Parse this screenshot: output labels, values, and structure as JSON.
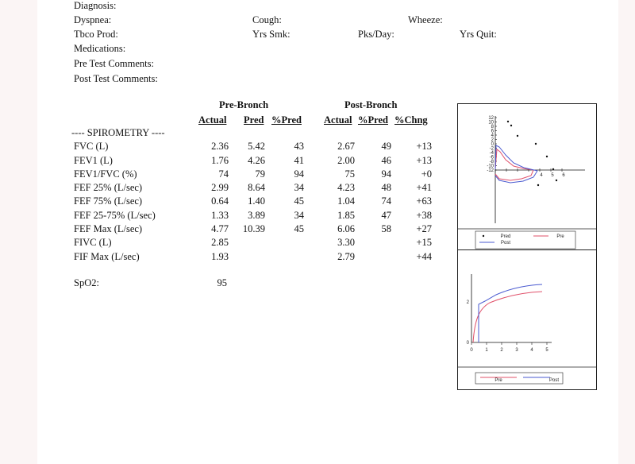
{
  "header": {
    "diagnosis": "Diagnosis:",
    "dyspnea": "Dyspnea:",
    "cough": "Cough:",
    "wheeze": "Wheeze:",
    "tbco_prod": "Tbco Prod:",
    "yrs_smk": "Yrs Smk:",
    "pks_day": "Pks/Day:",
    "yrs_quit": "Yrs Quit:",
    "medications": "Medications:",
    "pre_test_comments": "Pre Test Comments:",
    "post_test_comments": "Post Test Comments:"
  },
  "table": {
    "pre_bronch": "Pre-Bronch",
    "post_bronch": "Post-Bronch",
    "columns": [
      "Actual",
      "Pred",
      "%Pred",
      "Actual",
      "%Pred",
      "%Chng"
    ],
    "section": "---- SPIROMETRY ----",
    "rows": [
      {
        "label": "FVC (L)",
        "pre_actual": "2.36",
        "pred": "5.42",
        "pct_pred": "43",
        "post_actual": "2.67",
        "post_pct_pred": "49",
        "pct_chng": "+13"
      },
      {
        "label": "FEV1 (L)",
        "pre_actual": "1.76",
        "pred": "4.26",
        "pct_pred": "41",
        "post_actual": "2.00",
        "post_pct_pred": "46",
        "pct_chng": "+13"
      },
      {
        "label": "FEV1/FVC (%)",
        "pre_actual": "74",
        "pred": "79",
        "pct_pred": "94",
        "post_actual": "75",
        "post_pct_pred": "94",
        "pct_chng": "+0"
      },
      {
        "label": "FEF 25% (L/sec)",
        "pre_actual": "2.99",
        "pred": "8.64",
        "pct_pred": "34",
        "post_actual": "4.23",
        "post_pct_pred": "48",
        "pct_chng": "+41"
      },
      {
        "label": "FEF 75% (L/sec)",
        "pre_actual": "0.64",
        "pred": "1.40",
        "pct_pred": "45",
        "post_actual": "1.04",
        "post_pct_pred": "74",
        "pct_chng": "+63"
      },
      {
        "label": "FEF 25-75% (L/sec)",
        "pre_actual": "1.33",
        "pred": "3.89",
        "pct_pred": "34",
        "post_actual": "1.85",
        "post_pct_pred": "47",
        "pct_chng": "+38"
      },
      {
        "label": "FEF Max (L/sec)",
        "pre_actual": "4.77",
        "pred": "10.39",
        "pct_pred": "45",
        "post_actual": "6.06",
        "post_pct_pred": "58",
        "pct_chng": "+27"
      },
      {
        "label": "FIVC (L)",
        "pre_actual": "2.85",
        "pred": "",
        "pct_pred": "",
        "post_actual": "3.30",
        "post_pct_pred": "",
        "pct_chng": "+15"
      },
      {
        "label": "FIF Max (L/sec)",
        "pre_actual": "1.93",
        "pred": "",
        "pct_pred": "",
        "post_actual": "2.79",
        "post_pct_pred": "",
        "pct_chng": "+44"
      }
    ],
    "spo2_label": "SpO2:",
    "spo2_value": "95"
  },
  "flow_volume_chart": {
    "y_ticks": [
      "12",
      "10",
      "8",
      "6",
      "4",
      "2",
      "0",
      "-2",
      "-4",
      "-6",
      "-8",
      "-10",
      "-12"
    ],
    "x_ticks": [
      "4",
      "5",
      "6"
    ],
    "legend": [
      "Pred",
      "Pre",
      "Post"
    ],
    "colors": {
      "pre": "#e0506a",
      "post": "#4a5ad0",
      "pred": "#111111"
    }
  },
  "volume_time_chart": {
    "y_ticks": [
      "2",
      "0"
    ],
    "x_ticks": [
      "0",
      "1",
      "2",
      "3",
      "4",
      "5"
    ],
    "legend": [
      "Pre",
      "Post"
    ],
    "colors": {
      "pre": "#e0506a",
      "post": "#4a5ad0"
    }
  }
}
